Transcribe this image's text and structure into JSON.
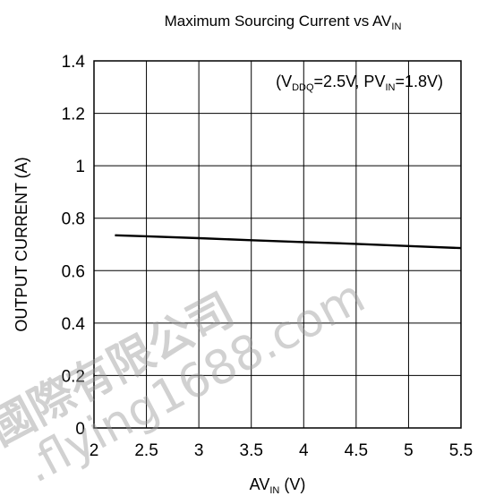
{
  "chart_data": {
    "type": "line",
    "title": {
      "main": "Maximum Sourcing Current vs AV",
      "sub": "IN"
    },
    "xlabel": {
      "main": "AV",
      "sub": "IN",
      "tail": " (V)"
    },
    "ylabel": "OUTPUT CURRENT (A)",
    "annotation": {
      "p1": "(V",
      "s1": "DDQ",
      "p2": "=2.5V, PV",
      "s2": "IN",
      "p3": "=1.8V)"
    },
    "xlim": [
      2,
      5.5
    ],
    "ylim": [
      0,
      1.4
    ],
    "xticks": [
      2,
      2.5,
      3,
      3.5,
      4,
      4.5,
      5,
      5.5
    ],
    "xtick_labels": [
      "2",
      "2.5",
      "3",
      "3.5",
      "4",
      "4.5",
      "5",
      "5.5"
    ],
    "yticks": [
      0,
      0.2,
      0.4,
      0.6,
      0.8,
      1,
      1.2,
      1.4
    ],
    "ytick_labels": [
      "0",
      "0.2",
      "0.4",
      "0.6",
      "0.8",
      "1",
      "1.2",
      "1.4"
    ],
    "grid": true,
    "legend": "none",
    "series": [
      {
        "x": [
          2.2,
          2.5,
          3,
          3.5,
          4,
          4.5,
          5,
          5.5
        ],
        "y": [
          0.735,
          0.731,
          0.724,
          0.716,
          0.709,
          0.702,
          0.694,
          0.686
        ],
        "color": "#000000"
      }
    ]
  },
  "watermark": {
    "line1": "國際有限公司",
    "line2": ".flying1688.com",
    "color": "#9a9a9a"
  }
}
